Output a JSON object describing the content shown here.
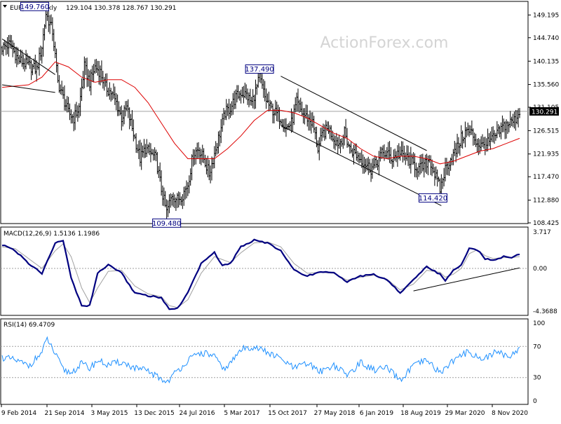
{
  "header": {
    "symbol": "EURJPY,Weekly",
    "ohlc": "129.104 130.378 128.767 130.291"
  },
  "watermark": "ActionForex.com",
  "colors": {
    "background": "#ffffff",
    "price_bars": "#000000",
    "moving_average": "#dd0000",
    "macd_main": "#000080",
    "macd_signal": "#a0a0a0",
    "rsi_line": "#1e90ff",
    "trendlines": "#000000",
    "grid_levels": "#a0a0a0"
  },
  "chart_data": [
    {
      "type": "line",
      "panel": "price",
      "title": "EURJPY,Weekly",
      "ylim": [
        108.425,
        151.72
      ],
      "y_ticks": [
        "149.195",
        "144.740",
        "140.135",
        "135.560",
        "131.105",
        "126.515",
        "121.935",
        "117.470",
        "112.880",
        "108.425"
      ],
      "current_price": "130.291",
      "current_level": 130.291,
      "x_labels": [
        "9 Feb 2014",
        "21 Sep 2014",
        "3 May 2015",
        "13 Dec 2015",
        "24 Jul 2016",
        "5 Mar 2017",
        "15 Oct 2017",
        "27 May 2018",
        "6 Jan 2019",
        "18 Aug 2019",
        "29 Mar 2020",
        "8 Nov 2020"
      ],
      "annotations": [
        {
          "label": "149.760",
          "week": 33,
          "value": 149.76
        },
        {
          "label": "137.490",
          "week": 194,
          "value": 137.49
        },
        {
          "label": "109.480",
          "week": 124,
          "value": 109.48
        },
        {
          "label": "114.420",
          "week": 330,
          "value": 114.42
        }
      ],
      "price_anchors": [
        [
          0,
          142.8
        ],
        [
          6,
          143.5
        ],
        [
          12,
          140.5
        ],
        [
          18,
          139.5
        ],
        [
          26,
          138.5
        ],
        [
          30,
          143
        ],
        [
          33,
          149.5
        ],
        [
          38,
          146
        ],
        [
          42,
          136
        ],
        [
          46,
          133
        ],
        [
          50,
          130
        ],
        [
          54,
          129
        ],
        [
          58,
          131
        ],
        [
          62,
          139
        ],
        [
          66,
          136
        ],
        [
          70,
          139
        ],
        [
          74,
          138
        ],
        [
          78,
          135
        ],
        [
          82,
          134
        ],
        [
          86,
          132
        ],
        [
          90,
          129
        ],
        [
          94,
          131
        ],
        [
          100,
          125
        ],
        [
          104,
          121
        ],
        [
          108,
          123
        ],
        [
          112,
          122
        ],
        [
          116,
          121
        ],
        [
          120,
          115
        ],
        [
          124,
          110.5
        ],
        [
          128,
          114
        ],
        [
          132,
          113
        ],
        [
          136,
          114
        ],
        [
          140,
          116
        ],
        [
          144,
          122
        ],
        [
          148,
          123
        ],
        [
          152,
          121
        ],
        [
          156,
          118
        ],
        [
          160,
          122
        ],
        [
          164,
          126
        ],
        [
          168,
          130
        ],
        [
          172,
          131
        ],
        [
          176,
          133
        ],
        [
          180,
          134
        ],
        [
          184,
          133.5
        ],
        [
          188,
          132
        ],
        [
          192,
          135
        ],
        [
          194,
          137
        ],
        [
          198,
          133
        ],
        [
          202,
          131
        ],
        [
          206,
          130
        ],
        [
          210,
          129
        ],
        [
          214,
          127
        ],
        [
          218,
          128
        ],
        [
          222,
          132
        ],
        [
          226,
          130
        ],
        [
          230,
          129
        ],
        [
          234,
          128
        ],
        [
          238,
          123
        ],
        [
          242,
          126
        ],
        [
          246,
          127
        ],
        [
          250,
          125
        ],
        [
          254,
          124
        ],
        [
          258,
          126
        ],
        [
          262,
          123
        ],
        [
          266,
          122
        ],
        [
          270,
          121
        ],
        [
          274,
          120
        ],
        [
          278,
          119
        ],
        [
          282,
          120
        ],
        [
          286,
          122
        ],
        [
          290,
          122
        ],
        [
          294,
          121
        ],
        [
          298,
          122
        ],
        [
          302,
          121.5
        ],
        [
          306,
          121
        ],
        [
          310,
          120
        ],
        [
          314,
          119
        ],
        [
          318,
          119.5
        ],
        [
          322,
          121
        ],
        [
          326,
          118
        ],
        [
          330,
          115
        ],
        [
          334,
          119
        ],
        [
          338,
          121
        ],
        [
          342,
          122.5
        ],
        [
          346,
          125
        ],
        [
          350,
          126.5
        ],
        [
          354,
          126
        ],
        [
          358,
          124
        ],
        [
          362,
          123.5
        ],
        [
          366,
          124
        ],
        [
          370,
          125
        ],
        [
          374,
          126
        ],
        [
          378,
          127.5
        ],
        [
          382,
          128
        ],
        [
          386,
          128.5
        ],
        [
          390,
          130.29
        ]
      ],
      "series": [
        {
          "values_from": "price_anchors",
          "style": "bars"
        },
        {
          "values_from": "ma_anchors",
          "style": "line"
        }
      ],
      "ma_anchors": [
        [
          0,
          135
        ],
        [
          20,
          135.5
        ],
        [
          30,
          137
        ],
        [
          40,
          140
        ],
        [
          50,
          139
        ],
        [
          60,
          137
        ],
        [
          70,
          136
        ],
        [
          80,
          136.5
        ],
        [
          90,
          136.5
        ],
        [
          100,
          135
        ],
        [
          110,
          132
        ],
        [
          120,
          128
        ],
        [
          130,
          124
        ],
        [
          140,
          121
        ],
        [
          150,
          121
        ],
        [
          160,
          121
        ],
        [
          170,
          123
        ],
        [
          180,
          125.5
        ],
        [
          190,
          128.5
        ],
        [
          200,
          130.5
        ],
        [
          210,
          130.5
        ],
        [
          220,
          130
        ],
        [
          230,
          129
        ],
        [
          240,
          127.5
        ],
        [
          250,
          126
        ],
        [
          260,
          125
        ],
        [
          270,
          123
        ],
        [
          280,
          121.5
        ],
        [
          290,
          121
        ],
        [
          300,
          121.5
        ],
        [
          310,
          121.5
        ],
        [
          320,
          121
        ],
        [
          330,
          120
        ],
        [
          340,
          120.5
        ],
        [
          350,
          121.5
        ],
        [
          360,
          122.5
        ],
        [
          370,
          123
        ],
        [
          380,
          124
        ],
        [
          390,
          125
        ]
      ],
      "channel_lines": [
        [
          [
            0,
            144.5
          ],
          [
            40,
            137.5
          ]
        ],
        [
          [
            0,
            135.5
          ],
          [
            40,
            134
          ]
        ],
        [
          [
            210,
            137.2
          ],
          [
            320,
            122.6
          ]
        ],
        [
          [
            210,
            127.5
          ],
          [
            331,
            111.8
          ]
        ]
      ]
    },
    {
      "type": "line",
      "panel": "macd",
      "title": "MACD(12,26,9) 1.5136 1.1986",
      "ylim": [
        -4.3688,
        3.717
      ],
      "y_ticks": [
        "3.717",
        "0.00",
        "-4.3688"
      ],
      "series": [
        {
          "name": "MACD",
          "style": "line",
          "values": [
            [
              0,
              2.4
            ],
            [
              10,
              1.8
            ],
            [
              20,
              0.5
            ],
            [
              30,
              -0.5
            ],
            [
              40,
              2.6
            ],
            [
              46,
              2.9
            ],
            [
              52,
              -1
            ],
            [
              60,
              -3.8
            ],
            [
              66,
              -3.8
            ],
            [
              72,
              -0.5
            ],
            [
              80,
              0.4
            ],
            [
              90,
              -0.5
            ],
            [
              100,
              -2.5
            ],
            [
              110,
              -2.8
            ],
            [
              120,
              -3
            ],
            [
              126,
              -4.2
            ],
            [
              132,
              -4.1
            ],
            [
              140,
              -2.5
            ],
            [
              150,
              0.5
            ],
            [
              160,
              1.6
            ],
            [
              166,
              0.3
            ],
            [
              172,
              0.5
            ],
            [
              180,
              2.2
            ],
            [
              190,
              2.9
            ],
            [
              200,
              2.6
            ],
            [
              210,
              1.8
            ],
            [
              220,
              -0.2
            ],
            [
              230,
              -0.8
            ],
            [
              240,
              -0.3
            ],
            [
              250,
              -0.5
            ],
            [
              260,
              -1.4
            ],
            [
              270,
              -0.8
            ],
            [
              280,
              -0.6
            ],
            [
              290,
              -1.2
            ],
            [
              300,
              -2.5
            ],
            [
              310,
              -1.2
            ],
            [
              320,
              0.2
            ],
            [
              330,
              -0.6
            ],
            [
              334,
              -1.3
            ],
            [
              340,
              -0.2
            ],
            [
              346,
              0.3
            ],
            [
              352,
              2.1
            ],
            [
              358,
              1.9
            ],
            [
              364,
              1
            ],
            [
              370,
              0.8
            ],
            [
              378,
              1.2
            ],
            [
              384,
              1.1
            ],
            [
              390,
              1.51
            ]
          ]
        },
        {
          "name": "Signal",
          "style": "line",
          "values": [
            [
              0,
              2.2
            ],
            [
              10,
              2
            ],
            [
              20,
              1
            ],
            [
              30,
              0
            ],
            [
              40,
              1.8
            ],
            [
              46,
              2.5
            ],
            [
              52,
              1.2
            ],
            [
              60,
              -2
            ],
            [
              66,
              -3.5
            ],
            [
              72,
              -2
            ],
            [
              80,
              -0.3
            ],
            [
              90,
              -0.2
            ],
            [
              100,
              -1.8
            ],
            [
              110,
              -2.6
            ],
            [
              120,
              -2.9
            ],
            [
              126,
              -3.8
            ],
            [
              132,
              -4
            ],
            [
              140,
              -3.2
            ],
            [
              150,
              -0.5
            ],
            [
              160,
              1.2
            ],
            [
              166,
              0.9
            ],
            [
              172,
              0.6
            ],
            [
              180,
              1.6
            ],
            [
              190,
              2.6
            ],
            [
              200,
              2.7
            ],
            [
              210,
              2.2
            ],
            [
              220,
              0.5
            ],
            [
              230,
              -0.5
            ],
            [
              240,
              -0.4
            ],
            [
              250,
              -0.5
            ],
            [
              260,
              -1.2
            ],
            [
              270,
              -0.9
            ],
            [
              280,
              -0.7
            ],
            [
              290,
              -1.1
            ],
            [
              300,
              -2.2
            ],
            [
              310,
              -1.6
            ],
            [
              320,
              -0.2
            ],
            [
              330,
              -0.4
            ],
            [
              334,
              -0.9
            ],
            [
              340,
              -0.6
            ],
            [
              346,
              0
            ],
            [
              352,
              1.5
            ],
            [
              358,
              1.9
            ],
            [
              364,
              1.3
            ],
            [
              370,
              1
            ],
            [
              378,
              1.1
            ],
            [
              384,
              1.1
            ],
            [
              390,
              1.2
            ]
          ]
        }
      ],
      "trendline": [
        [
          310,
          -2.3
        ],
        [
          390,
          0.05
        ]
      ]
    },
    {
      "type": "line",
      "panel": "rsi",
      "title": "RSI(14) 69.4709",
      "ylim": [
        0,
        100
      ],
      "y_ticks": [
        "100",
        "70",
        "30",
        "0"
      ],
      "levels": [
        70,
        30
      ],
      "series": [
        {
          "name": "RSI",
          "style": "line",
          "values": [
            [
              0,
              56
            ],
            [
              10,
              52
            ],
            [
              20,
              45
            ],
            [
              30,
              62
            ],
            [
              34,
              80
            ],
            [
              40,
              60
            ],
            [
              46,
              40
            ],
            [
              52,
              36
            ],
            [
              60,
              48
            ],
            [
              66,
              42
            ],
            [
              72,
              52
            ],
            [
              80,
              46
            ],
            [
              90,
              50
            ],
            [
              100,
              42
            ],
            [
              110,
              38
            ],
            [
              120,
              28
            ],
            [
              124,
              24
            ],
            [
              130,
              35
            ],
            [
              140,
              52
            ],
            [
              150,
              62
            ],
            [
              160,
              58
            ],
            [
              166,
              40
            ],
            [
              172,
              48
            ],
            [
              180,
              66
            ],
            [
              190,
              70
            ],
            [
              200,
              62
            ],
            [
              210,
              54
            ],
            [
              220,
              42
            ],
            [
              230,
              48
            ],
            [
              240,
              38
            ],
            [
              250,
              46
            ],
            [
              260,
              33
            ],
            [
              270,
              49
            ],
            [
              280,
              40
            ],
            [
              290,
              42
            ],
            [
              300,
              26
            ],
            [
              310,
              45
            ],
            [
              320,
              52
            ],
            [
              330,
              36
            ],
            [
              340,
              52
            ],
            [
              346,
              58
            ],
            [
              352,
              64
            ],
            [
              358,
              56
            ],
            [
              364,
              54
            ],
            [
              370,
              62
            ],
            [
              378,
              60
            ],
            [
              384,
              58
            ],
            [
              390,
              69.47
            ]
          ]
        }
      ]
    }
  ]
}
